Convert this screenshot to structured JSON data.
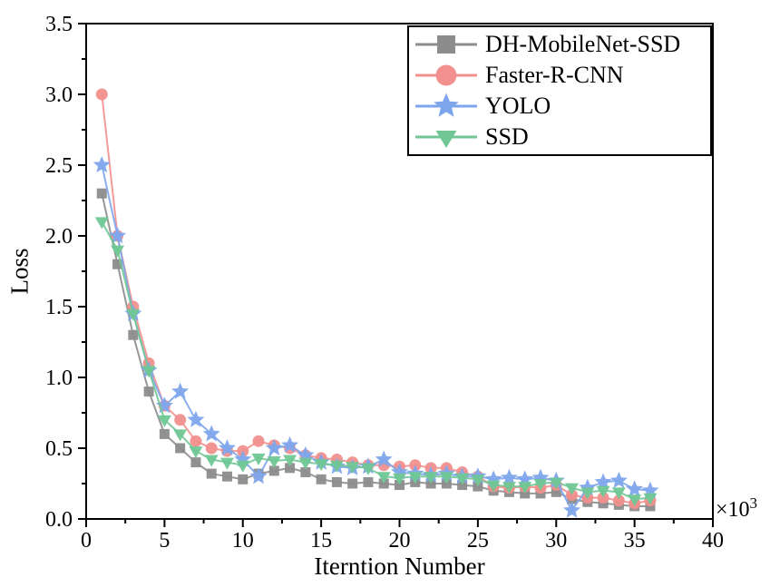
{
  "chart_data": {
    "type": "line",
    "title": "",
    "xlabel": "Iterntion Number",
    "ylabel": "Loss",
    "multiplier_base": "×10",
    "multiplier_exp": "3",
    "xlim": [
      0,
      40
    ],
    "ylim": [
      0,
      3.5
    ],
    "grid": false,
    "legend_position": "upper-right",
    "x_tick_labels": [
      "0",
      "5",
      "10",
      "15",
      "20",
      "25",
      "30",
      "35",
      "40"
    ],
    "x_major_ticks": [
      0,
      5,
      10,
      15,
      20,
      25,
      30,
      35,
      40
    ],
    "x_minor_ticks": [
      2.5,
      7.5,
      12.5,
      17.5,
      22.5,
      27.5,
      32.5,
      37.5
    ],
    "y_tick_labels": [
      "0.0",
      "0.5",
      "1.0",
      "1.5",
      "2.0",
      "2.5",
      "3.0",
      "3.5"
    ],
    "y_major_ticks": [
      0,
      0.5,
      1,
      1.5,
      2,
      2.5,
      3,
      3.5
    ],
    "y_minor_ticks": [
      0.25,
      0.75,
      1.25,
      1.75,
      2.25,
      2.75,
      3.25
    ],
    "x": [
      1,
      2,
      3,
      4,
      5,
      6,
      7,
      8,
      9,
      10,
      11,
      12,
      13,
      14,
      15,
      16,
      17,
      18,
      19,
      20,
      21,
      22,
      23,
      24,
      25,
      26,
      27,
      28,
      29,
      30,
      31,
      32,
      33,
      34,
      35,
      36
    ],
    "series": [
      {
        "name": "DH-MobileNet-SSD",
        "marker": "square",
        "color": "#8c8c8c",
        "values": [
          2.3,
          1.8,
          1.3,
          0.9,
          0.6,
          0.5,
          0.4,
          0.32,
          0.3,
          0.28,
          0.32,
          0.34,
          0.36,
          0.33,
          0.28,
          0.26,
          0.25,
          0.26,
          0.25,
          0.24,
          0.26,
          0.25,
          0.25,
          0.24,
          0.23,
          0.2,
          0.19,
          0.18,
          0.18,
          0.19,
          0.14,
          0.12,
          0.11,
          0.1,
          0.09,
          0.09
        ]
      },
      {
        "name": "Faster-R-CNN",
        "marker": "circle",
        "color": "#f1908e",
        "values": [
          3.0,
          2.0,
          1.5,
          1.1,
          0.8,
          0.7,
          0.55,
          0.5,
          0.48,
          0.48,
          0.55,
          0.52,
          0.5,
          0.45,
          0.43,
          0.42,
          0.4,
          0.38,
          0.38,
          0.37,
          0.38,
          0.36,
          0.36,
          0.33,
          0.3,
          0.23,
          0.22,
          0.23,
          0.22,
          0.24,
          0.17,
          0.15,
          0.15,
          0.13,
          0.11,
          0.13
        ]
      },
      {
        "name": "YOLO",
        "marker": "star",
        "color": "#7ea6ec",
        "values": [
          2.5,
          2.0,
          1.45,
          1.05,
          0.8,
          0.9,
          0.7,
          0.6,
          0.5,
          0.42,
          0.3,
          0.5,
          0.52,
          0.45,
          0.4,
          0.37,
          0.36,
          0.37,
          0.42,
          0.33,
          0.32,
          0.31,
          0.32,
          0.3,
          0.3,
          0.28,
          0.29,
          0.28,
          0.29,
          0.27,
          0.06,
          0.22,
          0.26,
          0.27,
          0.21,
          0.2
        ]
      },
      {
        "name": "SSD",
        "marker": "triangle-down",
        "color": "#70c795",
        "values": [
          2.1,
          1.9,
          1.45,
          1.05,
          0.7,
          0.6,
          0.48,
          0.42,
          0.4,
          0.38,
          0.43,
          0.41,
          0.42,
          0.4,
          0.39,
          0.38,
          0.37,
          0.36,
          0.3,
          0.29,
          0.3,
          0.3,
          0.3,
          0.29,
          0.28,
          0.24,
          0.23,
          0.23,
          0.25,
          0.26,
          0.22,
          0.19,
          0.2,
          0.19,
          0.14,
          0.15
        ]
      }
    ]
  }
}
